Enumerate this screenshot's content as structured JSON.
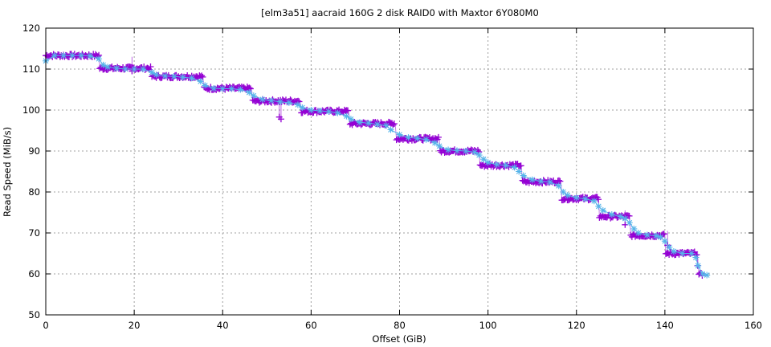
{
  "chart_data": {
    "type": "scatter",
    "title": "[elm3a51] aacraid 160G 2 disk RAID0 with Maxtor 6Y080M0",
    "xlabel": "Offset (GiB)",
    "ylabel": "Read Speed (MiB/s)",
    "xlim": [
      0,
      160
    ],
    "ylim": [
      50,
      120
    ],
    "xticks": [
      0,
      20,
      40,
      60,
      80,
      100,
      120,
      140,
      160
    ],
    "yticks": [
      50,
      60,
      70,
      80,
      90,
      100,
      110,
      120
    ],
    "grid": true,
    "legend": "none",
    "series": [
      {
        "marker": "plus",
        "color": "#9400d3",
        "steps": [
          [
            0,
            12,
            113.3
          ],
          [
            12.2,
            23.8,
            110.2
          ],
          [
            24,
            35.5,
            108.2
          ],
          [
            35.8,
            46.5,
            105.3
          ],
          [
            46.8,
            57.5,
            102.2
          ],
          [
            57.8,
            68.5,
            99.7
          ],
          [
            68.8,
            79,
            96.7
          ],
          [
            79.3,
            89,
            93.0
          ],
          [
            89.2,
            98,
            90.0
          ],
          [
            98.2,
            107.5,
            86.5
          ],
          [
            107.8,
            116.5,
            82.5
          ],
          [
            116.7,
            125,
            78.4
          ],
          [
            125.2,
            132,
            74.0
          ],
          [
            132.3,
            140,
            69.4
          ],
          [
            140.2,
            147.3,
            65.0
          ],
          [
            147.7,
            148.5,
            59.8
          ]
        ],
        "outliers": [
          [
            19.5,
            109.5
          ],
          [
            52.8,
            98.3
          ],
          [
            53.2,
            97.8
          ],
          [
            131,
            72
          ],
          [
            140.6,
            67
          ],
          [
            147.4,
            62
          ]
        ]
      },
      {
        "marker": "star",
        "color": "#56b4e9",
        "x": [
          0,
          2,
          4,
          6,
          8,
          10,
          12,
          13,
          14,
          16,
          18,
          20,
          22,
          24,
          25,
          27,
          29,
          31,
          33,
          35,
          36,
          38,
          40,
          42,
          44,
          46,
          47,
          49,
          51,
          53,
          55,
          57,
          58,
          60,
          62,
          64,
          66,
          68,
          69,
          71,
          73,
          75,
          77,
          78,
          80,
          82,
          84,
          86,
          88,
          89,
          91,
          93,
          95,
          97,
          98,
          99,
          100,
          102,
          104,
          106,
          107,
          108,
          110,
          112,
          114,
          116,
          117,
          118,
          120,
          122,
          124,
          125,
          126,
          128,
          130,
          131,
          132,
          133,
          134,
          136,
          138,
          139,
          140,
          141,
          142,
          144,
          146,
          147,
          147.5,
          148.5,
          149.5
        ],
        "y": [
          112,
          113.3,
          113.3,
          113.3,
          113.3,
          113.2,
          112.5,
          111,
          110.5,
          110.2,
          110,
          110,
          110,
          109.2,
          108.6,
          108.3,
          108.2,
          108,
          107.8,
          107,
          106,
          105.3,
          105.2,
          105.2,
          105,
          104.3,
          103.5,
          102.6,
          102.3,
          102,
          101.8,
          101.3,
          100.6,
          100,
          99.8,
          99.6,
          99.3,
          98.5,
          97.8,
          97,
          96.8,
          96.5,
          96.2,
          95.2,
          94,
          93.3,
          93.1,
          92.8,
          92,
          91.2,
          90.3,
          90.1,
          90,
          89.7,
          89,
          88,
          87.2,
          86.7,
          86.5,
          86,
          85,
          84,
          83,
          82.6,
          82.4,
          81.5,
          80,
          79.2,
          78.6,
          78.3,
          77.8,
          76.5,
          75.5,
          74.5,
          74,
          73.5,
          72.5,
          71,
          70,
          69.5,
          69.3,
          69,
          68,
          66.5,
          65.5,
          65,
          65,
          64,
          62,
          60,
          59.7
        ]
      }
    ]
  }
}
